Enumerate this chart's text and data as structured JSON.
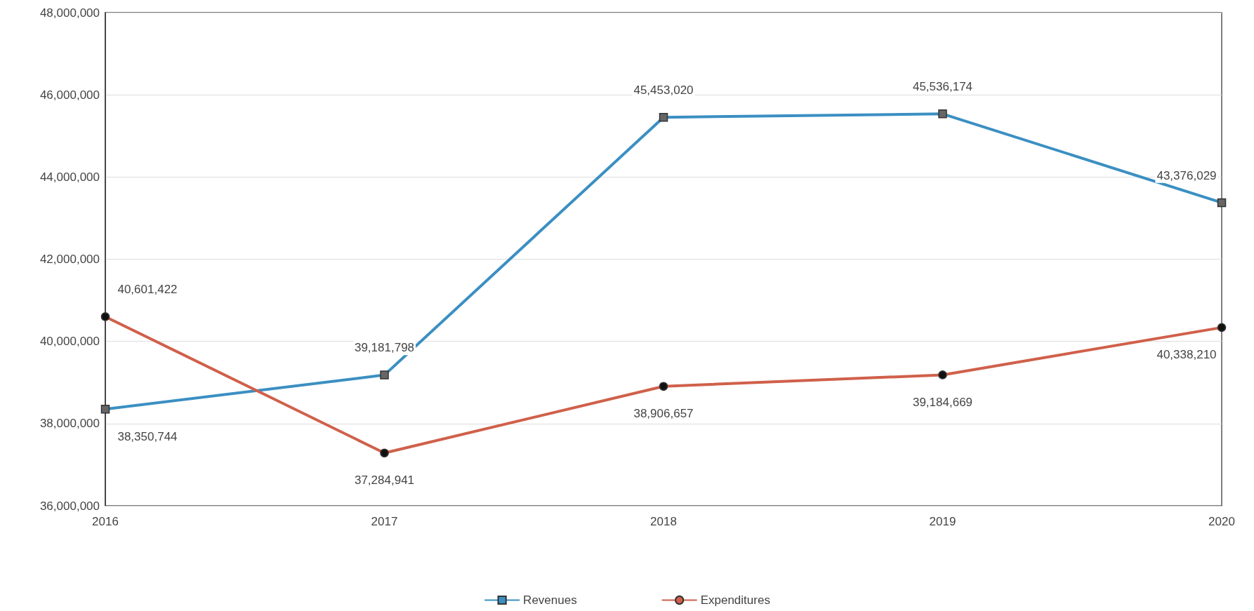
{
  "chart_data": {
    "type": "line",
    "categories": [
      "2016",
      "2017",
      "2018",
      "2019",
      "2020"
    ],
    "series": [
      {
        "name": "Revenues",
        "color": "#3b8fc2",
        "marker": "square",
        "values": [
          38350744,
          39181798,
          45453020,
          45536174,
          43376029
        ],
        "value_labels": [
          "38,350,744",
          "39,181,798",
          "45,453,020",
          "45,536,174",
          "43,376,029"
        ]
      },
      {
        "name": "Expenditures",
        "color": "#d0604a",
        "marker": "circle",
        "values": [
          40601422,
          37284941,
          38906657,
          39184669,
          40338210
        ],
        "value_labels": [
          "40,601,422",
          "37,284,941",
          "38,906,657",
          "39,184,669",
          "40,338,210"
        ]
      }
    ],
    "ylim": [
      36000000,
      48000000
    ],
    "yticks": [
      {
        "value": 36000000,
        "label": "36,000,000"
      },
      {
        "value": 38000000,
        "label": "38,000,000"
      },
      {
        "value": 40000000,
        "label": "40,000,000"
      },
      {
        "value": 42000000,
        "label": "42,000,000"
      },
      {
        "value": 44000000,
        "label": "44,000,000"
      },
      {
        "value": 46000000,
        "label": "46,000,000"
      },
      {
        "value": 48000000,
        "label": "48,000,000"
      }
    ],
    "grid": "y",
    "legend": "bottom"
  }
}
